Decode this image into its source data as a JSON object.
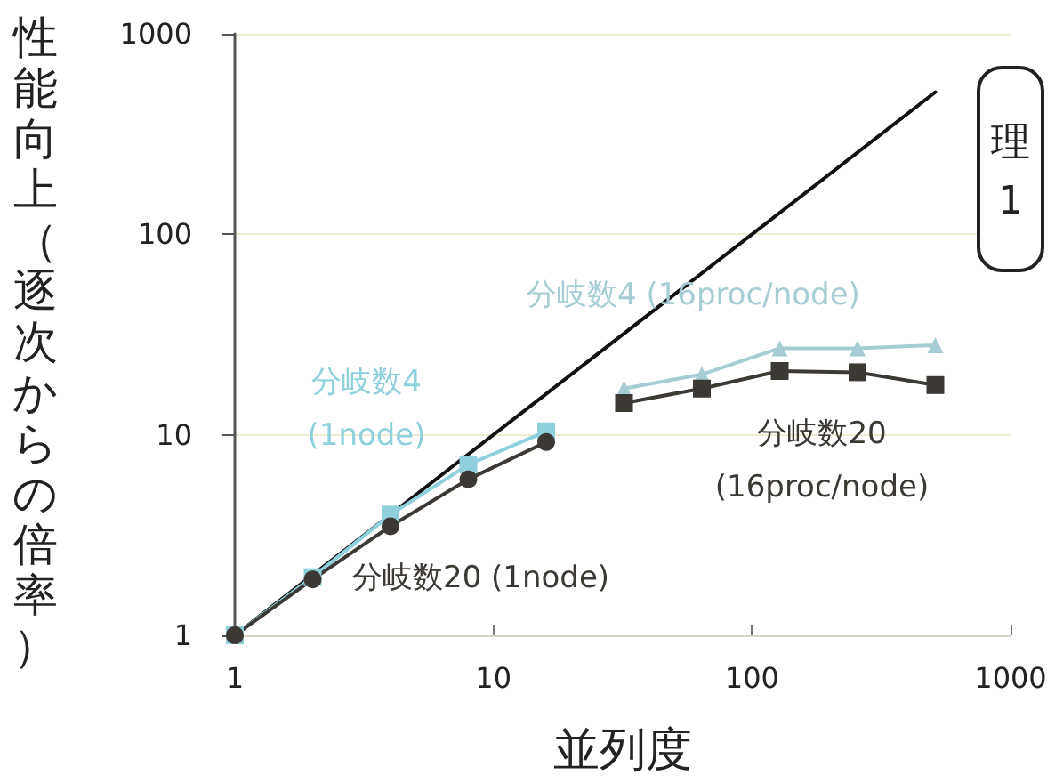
{
  "chart_data": {
    "type": "line",
    "xlabel": "並列度",
    "ylabel": "性能向上（逐次からの倍率）",
    "log": "xy",
    "xlim": [
      1,
      1000
    ],
    "ylim": [
      1,
      1000
    ],
    "xticks": [
      1,
      10,
      100,
      1000
    ],
    "yticks": [
      1,
      10,
      100,
      1000
    ],
    "grid": "y",
    "annotations": [
      "理",
      "1"
    ],
    "series": [
      {
        "color": "#111111",
        "marker": "none",
        "x": [
          1,
          512
        ],
        "values": [
          1,
          512
        ]
      },
      {
        "name": "分岐数4 (1node)",
        "color": "#8fd0dc",
        "marker": "square",
        "x": [
          1,
          2,
          4,
          8,
          16
        ],
        "values": [
          1,
          1.95,
          4.0,
          7.1,
          10.4
        ]
      },
      {
        "name": "分岐数20 (1node)",
        "color": "#3c3833",
        "marker": "circle",
        "x": [
          1,
          2,
          4,
          8,
          16
        ],
        "values": [
          1,
          1.9,
          3.5,
          6.0,
          9.2
        ]
      },
      {
        "name": "分岐数4 (16proc/node)",
        "color": "#a6cdd3",
        "marker": "triangle",
        "x": [
          32,
          64,
          128,
          256,
          512
        ],
        "values": [
          17,
          20,
          27,
          27,
          28
        ]
      },
      {
        "name": "分岐数20 (16proc/node)",
        "color": "#3c3833",
        "marker": "square",
        "x": [
          32,
          64,
          128,
          256,
          512
        ],
        "values": [
          14.4,
          17,
          20.8,
          20.5,
          17.7
        ]
      }
    ]
  }
}
